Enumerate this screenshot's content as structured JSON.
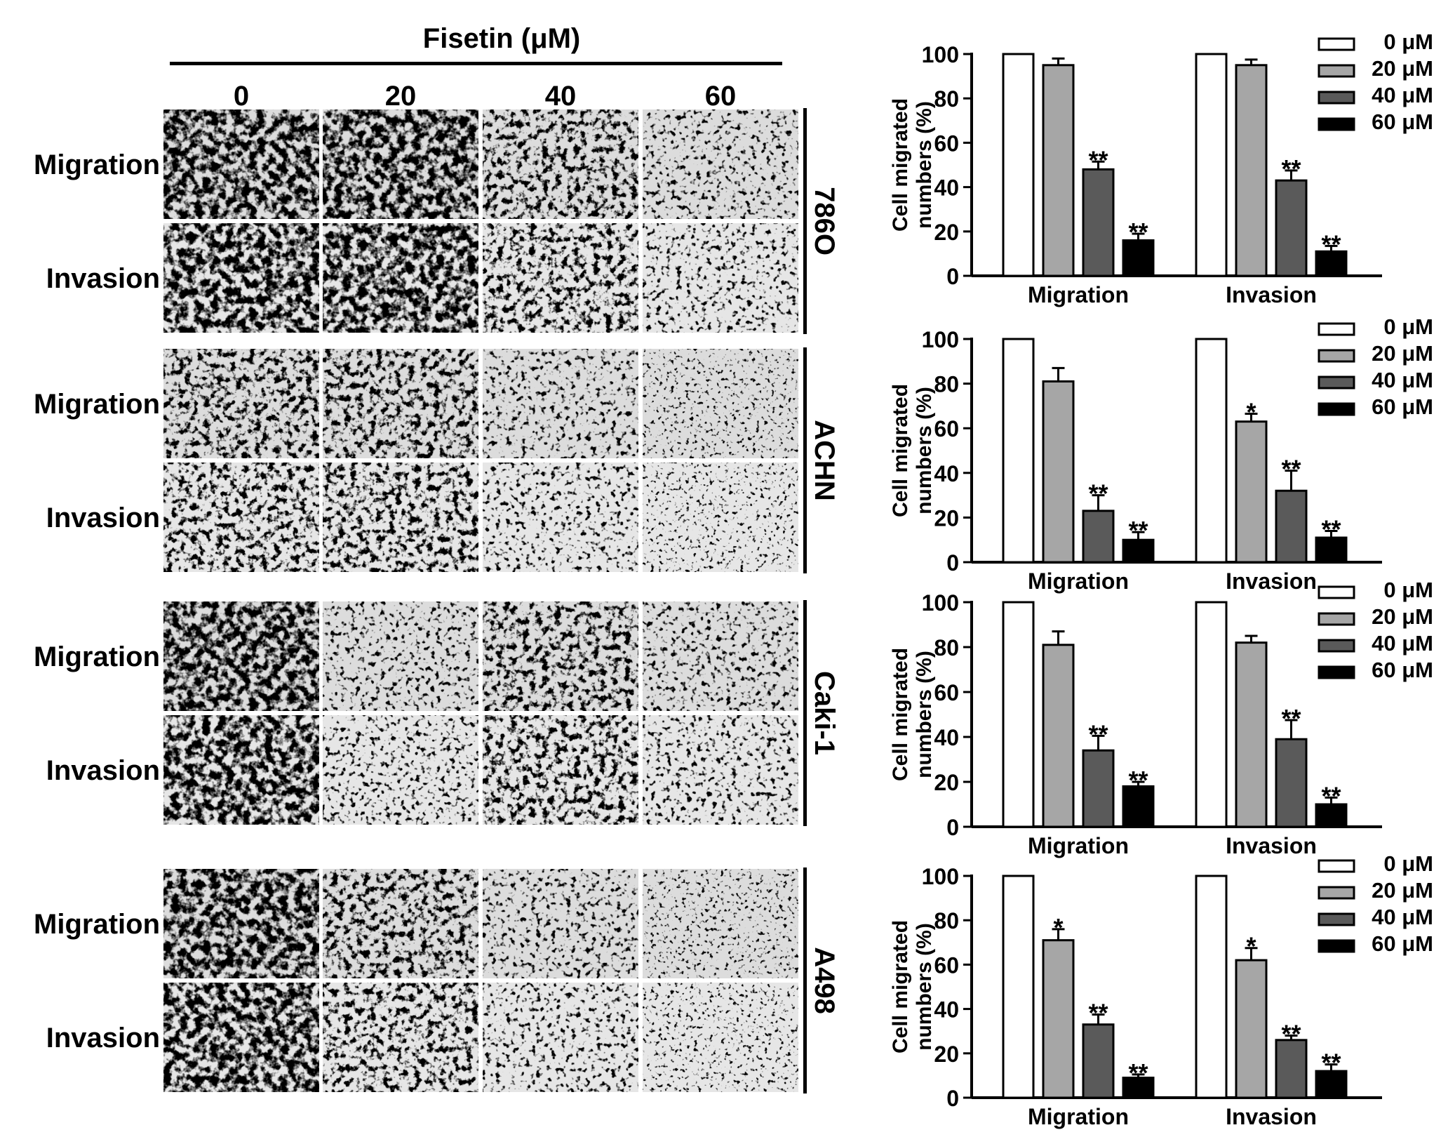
{
  "figure": {
    "treatment_label": "Fisetin (μM)",
    "concentrations": [
      "0",
      "20",
      "40",
      "60"
    ],
    "cell_lines": [
      {
        "name": "786O",
        "rows": [
          "Migration",
          "Invasion"
        ]
      },
      {
        "name": "ACHN",
        "rows": [
          "Migration",
          "Invasion"
        ]
      },
      {
        "name": "Caki-1",
        "rows": [
          "Migration",
          "Invasion"
        ]
      },
      {
        "name": "A498",
        "rows": [
          "Migration",
          "Invasion"
        ]
      }
    ],
    "colors": {
      "c0": "#ffffff",
      "c20": "#a6a6a6",
      "c40": "#5a5a5a",
      "c60": "#000000"
    }
  },
  "chart_data": [
    {
      "type": "bar",
      "cell_line": "786O",
      "categories": [
        "Migration",
        "Invasion"
      ],
      "series": [
        {
          "name": "0 μM",
          "values": [
            100,
            100
          ],
          "errors": [
            0,
            0
          ],
          "sig": [
            "",
            ""
          ]
        },
        {
          "name": "20 μM",
          "values": [
            95,
            95
          ],
          "errors": [
            3,
            2.5
          ],
          "sig": [
            "",
            ""
          ]
        },
        {
          "name": "40 μM",
          "values": [
            48,
            43
          ],
          "errors": [
            3.5,
            4.5
          ],
          "sig": [
            "**",
            "**"
          ]
        },
        {
          "name": "60 μM",
          "values": [
            16,
            11
          ],
          "errors": [
            3,
            2.5
          ],
          "sig": [
            "**",
            "**"
          ]
        }
      ],
      "ylabel": "Cell migrated numbers (%)",
      "ylim": [
        0,
        100
      ],
      "yticks": [
        0,
        20,
        40,
        60,
        80,
        100
      ],
      "legend": "top-right"
    },
    {
      "type": "bar",
      "cell_line": "ACHN",
      "categories": [
        "Migration",
        "Invasion"
      ],
      "series": [
        {
          "name": "0 μM",
          "values": [
            100,
            100
          ],
          "errors": [
            0,
            0
          ],
          "sig": [
            "",
            ""
          ]
        },
        {
          "name": "20 μM",
          "values": [
            81,
            63
          ],
          "errors": [
            6,
            3.5
          ],
          "sig": [
            "",
            "*"
          ]
        },
        {
          "name": "40 μM",
          "values": [
            23,
            32
          ],
          "errors": [
            7,
            9
          ],
          "sig": [
            "**",
            "**"
          ]
        },
        {
          "name": "60 μM",
          "values": [
            10,
            11
          ],
          "errors": [
            3.5,
            3
          ],
          "sig": [
            "**",
            "**"
          ]
        }
      ],
      "ylabel": "Cell migrated numbers (%)",
      "ylim": [
        0,
        100
      ],
      "yticks": [
        0,
        20,
        40,
        60,
        80,
        100
      ],
      "legend": "top-right"
    },
    {
      "type": "bar",
      "cell_line": "Caki-1",
      "categories": [
        "Migration",
        "Invasion"
      ],
      "series": [
        {
          "name": "0 μM",
          "values": [
            100,
            100
          ],
          "errors": [
            0,
            0
          ],
          "sig": [
            "",
            ""
          ]
        },
        {
          "name": "20 μM",
          "values": [
            81,
            82
          ],
          "errors": [
            6,
            3
          ],
          "sig": [
            "",
            ""
          ]
        },
        {
          "name": "40 μM",
          "values": [
            34,
            39
          ],
          "errors": [
            6.5,
            8.5
          ],
          "sig": [
            "**",
            "**"
          ]
        },
        {
          "name": "60 μM",
          "values": [
            18,
            10
          ],
          "errors": [
            2,
            3
          ],
          "sig": [
            "**",
            "**"
          ]
        }
      ],
      "ylabel": "Cell migrated numbers (%)",
      "ylim": [
        0,
        100
      ],
      "yticks": [
        0,
        20,
        40,
        60,
        80,
        100
      ],
      "legend": "top-right"
    },
    {
      "type": "bar",
      "cell_line": "A498",
      "categories": [
        "Migration",
        "Invasion"
      ],
      "series": [
        {
          "name": "0 μM",
          "values": [
            100,
            100
          ],
          "errors": [
            0,
            0
          ],
          "sig": [
            "",
            ""
          ]
        },
        {
          "name": "20 μM",
          "values": [
            71,
            62
          ],
          "errors": [
            5,
            5.5
          ],
          "sig": [
            "*",
            "*"
          ]
        },
        {
          "name": "40 μM",
          "values": [
            33,
            26
          ],
          "errors": [
            4.5,
            2
          ],
          "sig": [
            "**",
            "**"
          ]
        },
        {
          "name": "60 μM",
          "values": [
            9,
            12
          ],
          "errors": [
            1.5,
            3
          ],
          "sig": [
            "**",
            "**"
          ]
        }
      ],
      "ylabel": "Cell migrated numbers (%)",
      "ylim": [
        0,
        100
      ],
      "yticks": [
        0,
        20,
        40,
        60,
        80,
        100
      ],
      "legend": "top-right"
    }
  ]
}
